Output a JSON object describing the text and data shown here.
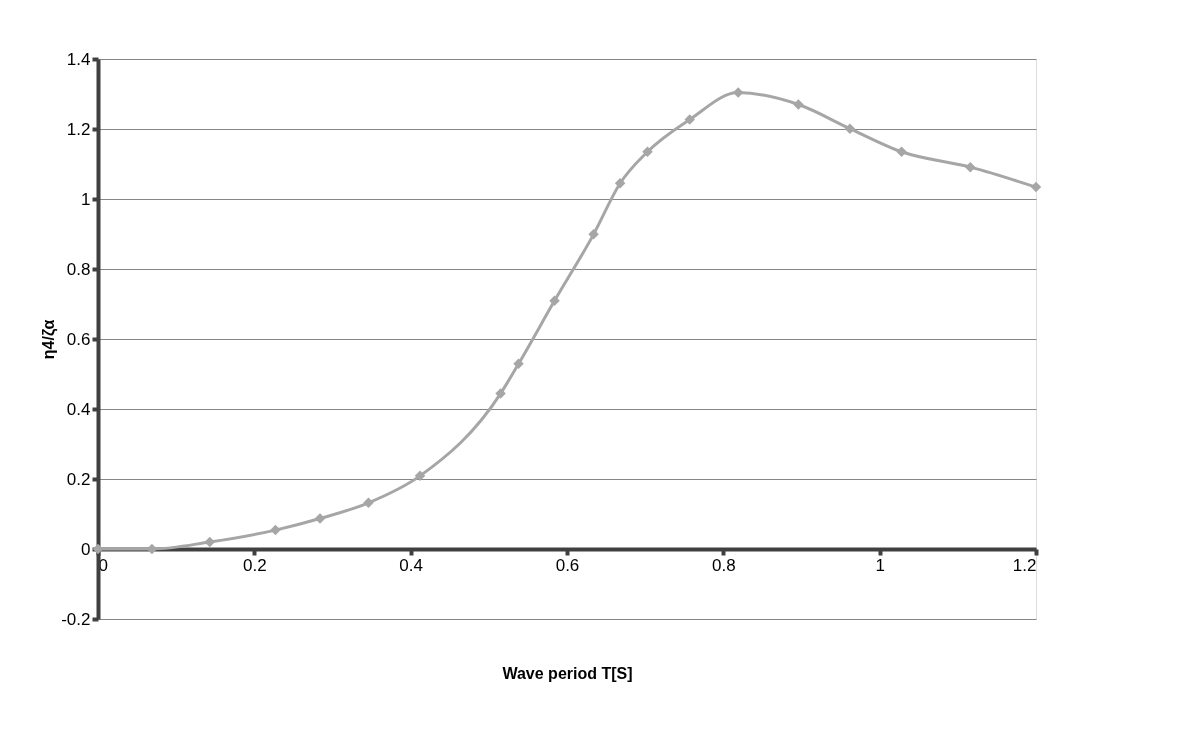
{
  "chart_data": {
    "type": "line",
    "xlabel": "Wave period T[S]",
    "ylabel": "η4/ζα",
    "x": [
      0,
      0.069,
      0.143,
      0.227,
      0.284,
      0.346,
      0.412,
      0.515,
      0.538,
      0.584,
      0.634,
      0.668,
      0.703,
      0.757,
      0.819,
      0.896,
      0.962,
      1.028,
      1.116,
      1.2
    ],
    "series": [
      {
        "color": "#a6a6a6",
        "values": [
          0,
          0,
          0.02,
          0.054,
          0.087,
          0.132,
          0.209,
          0.444,
          0.529,
          0.709,
          0.899,
          1.045,
          1.135,
          1.227,
          1.304,
          1.27,
          1.201,
          1.135,
          1.091,
          1.034
        ]
      }
    ],
    "xlim": [
      0,
      1.2
    ],
    "xticks": [
      0,
      0.2,
      0.4,
      0.6,
      0.8,
      1,
      1.2
    ],
    "ylim": [
      -0.2,
      1.4
    ],
    "yticks": [
      -0.2,
      0,
      0.2,
      0.4,
      0.6,
      0.8,
      1,
      1.2,
      1.4
    ],
    "grid": "y",
    "marker": "diamond",
    "line_style": "solid"
  }
}
